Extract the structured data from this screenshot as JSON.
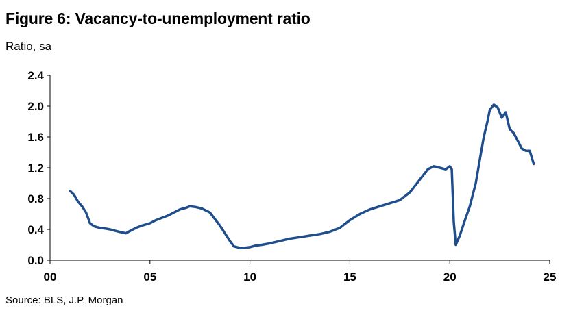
{
  "header": {
    "title": "Figure 6: Vacancy-to-unemployment ratio",
    "subtitle": "Ratio, sa"
  },
  "footer": {
    "source": "Source: BLS, J.P. Morgan"
  },
  "chart_data": {
    "type": "line",
    "title": "Figure 6: Vacancy-to-unemployment ratio",
    "ylabel": "Ratio, sa",
    "xlabel": "",
    "xlim": [
      2000,
      2025
    ],
    "ylim": [
      0.0,
      2.4
    ],
    "x_tick_labels": [
      "00",
      "05",
      "10",
      "15",
      "20",
      "25"
    ],
    "x_tick_values": [
      2000,
      2005,
      2010,
      2015,
      2020,
      2025
    ],
    "y_tick_labels": [
      "0.0",
      "0.4",
      "0.8",
      "1.2",
      "1.6",
      "2.0",
      "2.4"
    ],
    "y_tick_values": [
      0.0,
      0.4,
      0.8,
      1.2,
      1.6,
      2.0,
      2.4
    ],
    "grid": false,
    "line_color": "#1f4e8c",
    "series": [
      {
        "name": "",
        "x": [
          2001.0,
          2001.2,
          2001.4,
          2001.6,
          2001.8,
          2002.0,
          2002.2,
          2002.5,
          2002.8,
          2003.0,
          2003.3,
          2003.6,
          2003.8,
          2004.0,
          2004.3,
          2004.6,
          2005.0,
          2005.3,
          2005.6,
          2005.9,
          2006.2,
          2006.5,
          2006.8,
          2007.0,
          2007.3,
          2007.6,
          2008.0,
          2008.2,
          2008.5,
          2008.8,
          2009.0,
          2009.2,
          2009.5,
          2009.7,
          2010.0,
          2010.3,
          2010.6,
          2011.0,
          2011.5,
          2012.0,
          2012.5,
          2013.0,
          2013.5,
          2014.0,
          2014.5,
          2015.0,
          2015.5,
          2016.0,
          2016.5,
          2017.0,
          2017.5,
          2018.0,
          2018.3,
          2018.6,
          2018.9,
          2019.2,
          2019.5,
          2019.8,
          2020.0,
          2020.1,
          2020.2,
          2020.3,
          2020.5,
          2020.8,
          2021.0,
          2021.3,
          2021.5,
          2021.7,
          2021.9,
          2022.0,
          2022.2,
          2022.4,
          2022.6,
          2022.8,
          2023.0,
          2023.2,
          2023.4,
          2023.6,
          2023.8,
          2024.0,
          2024.2
        ],
        "values": [
          0.9,
          0.85,
          0.76,
          0.7,
          0.62,
          0.48,
          0.44,
          0.42,
          0.41,
          0.4,
          0.38,
          0.36,
          0.35,
          0.38,
          0.42,
          0.45,
          0.48,
          0.52,
          0.55,
          0.58,
          0.62,
          0.66,
          0.68,
          0.7,
          0.69,
          0.67,
          0.62,
          0.55,
          0.45,
          0.33,
          0.25,
          0.18,
          0.16,
          0.16,
          0.17,
          0.19,
          0.2,
          0.22,
          0.25,
          0.28,
          0.3,
          0.32,
          0.34,
          0.37,
          0.42,
          0.52,
          0.6,
          0.66,
          0.7,
          0.74,
          0.78,
          0.88,
          0.98,
          1.08,
          1.18,
          1.22,
          1.2,
          1.18,
          1.22,
          1.18,
          0.5,
          0.2,
          0.32,
          0.55,
          0.7,
          1.0,
          1.3,
          1.6,
          1.82,
          1.95,
          2.02,
          1.98,
          1.85,
          1.92,
          1.7,
          1.65,
          1.55,
          1.45,
          1.42,
          1.42,
          1.25
        ]
      }
    ]
  }
}
